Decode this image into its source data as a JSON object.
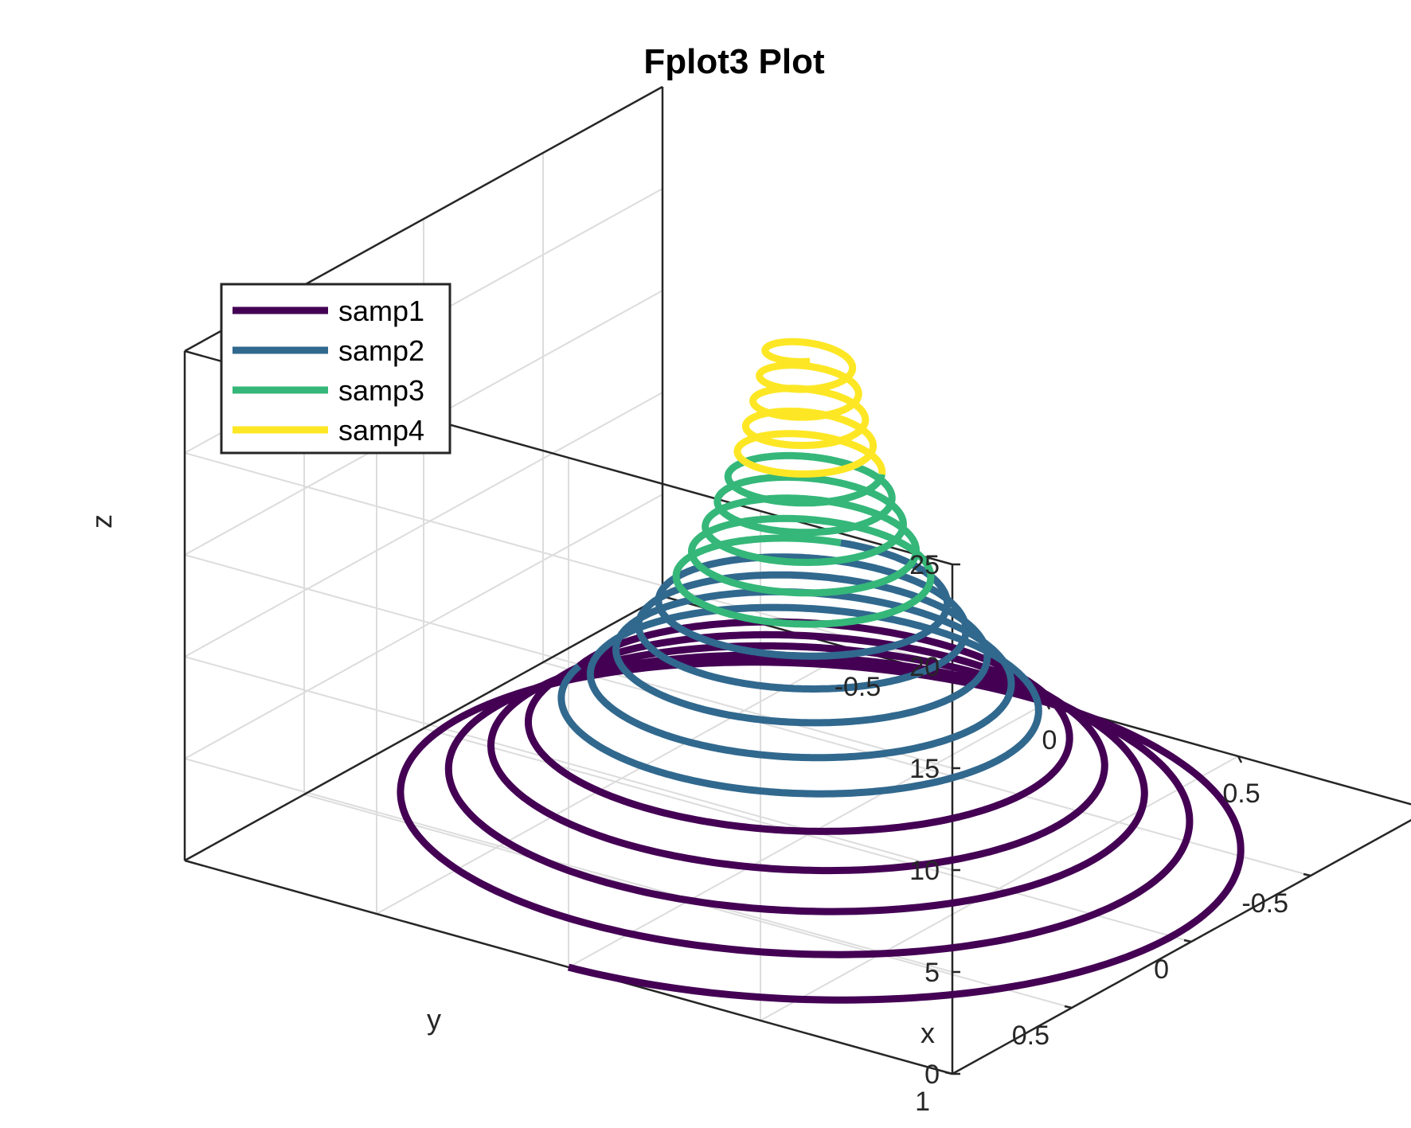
{
  "chart_data": {
    "type": "line",
    "title": "Fplot3 Plot",
    "xlabel": "x",
    "ylabel": "y",
    "zlabel": "z",
    "xlim": [
      -1,
      1
    ],
    "ylim": [
      -1,
      1
    ],
    "zlim": [
      0,
      25
    ],
    "x_ticks": [
      "-0.5",
      "0",
      "0.5"
    ],
    "y_ticks": [
      "-0.5",
      "0",
      "0.5",
      "1"
    ],
    "z_ticks": [
      "0",
      "5",
      "10",
      "15",
      "20",
      "25"
    ],
    "grid": true,
    "legend_position": "top-left",
    "series": [
      {
        "name": "samp1",
        "color": "#440154",
        "x": "exp(-t/10)*sin(5t)",
        "y": "exp(-t/10)*cos(5t)",
        "z": "t",
        "t_range": [
          0,
          6
        ]
      },
      {
        "name": "samp2",
        "color": "#31688e",
        "x": "exp(-t/10)*sin(5t)",
        "y": "exp(-t/10)*cos(5t)",
        "z": "t",
        "t_range": [
          6,
          12
        ]
      },
      {
        "name": "samp3",
        "color": "#35b779",
        "x": "exp(-t/10)*sin(5t)",
        "y": "exp(-t/10)*cos(5t)",
        "z": "t",
        "t_range": [
          12,
          18
        ]
      },
      {
        "name": "samp4",
        "color": "#fde725",
        "x": "exp(-t/10)*sin(5t)",
        "y": "exp(-t/10)*cos(5t)",
        "z": "t",
        "t_range": [
          18,
          24
        ]
      }
    ]
  }
}
